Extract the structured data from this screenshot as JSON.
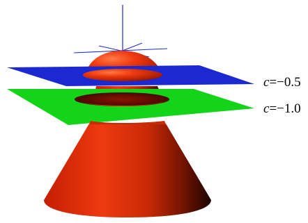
{
  "surface_color": "#e8340c",
  "surface_shadow_color": "#2a0800",
  "axes_color": "#1f2fd6",
  "levels": [
    {
      "var": "c",
      "rest": "=−0.5",
      "color": "#1c29d0"
    },
    {
      "var": "c",
      "rest": "=−1.0",
      "color": "#14d41a"
    }
  ]
}
